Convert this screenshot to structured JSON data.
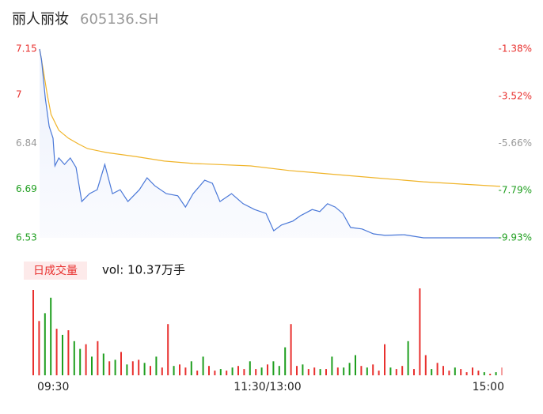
{
  "header": {
    "title": "丽人丽妆",
    "code": "605136.SH"
  },
  "chart_data": [
    {
      "type": "line",
      "xlim": [
        0,
        240
      ],
      "ylim": [
        6.53,
        7.15
      ],
      "yticks": [
        7.15,
        7.0,
        6.84,
        6.69,
        6.53
      ],
      "ytick_colors": [
        "#e8302e",
        "#e8302e",
        "#999999",
        "#1e9e1e",
        "#1e9e1e"
      ],
      "y2lim": [
        -9.93,
        -1.38
      ],
      "y2ticks": [
        {
          "value": -1.38,
          "label": "-1.38%"
        },
        {
          "value": -3.52,
          "label": "-3.52%"
        },
        {
          "value": -5.66,
          "label": "-5.66%"
        },
        {
          "value": -7.79,
          "label": "-7.79%"
        },
        {
          "value": -9.93,
          "label": "-9.93%"
        }
      ],
      "series": [
        {
          "color": "#4a78d8",
          "x": [
            0,
            1,
            3,
            5,
            7,
            8,
            10,
            13,
            16,
            19,
            22,
            26,
            30,
            34,
            38,
            42,
            46,
            52,
            56,
            60,
            66,
            72,
            76,
            80,
            86,
            90,
            94,
            100,
            106,
            112,
            118,
            122,
            126,
            132,
            136,
            142,
            146,
            150,
            154,
            158,
            162,
            168,
            174,
            180,
            190,
            200,
            240
          ],
          "values": [
            7.15,
            7.116,
            6.987,
            6.896,
            6.857,
            6.766,
            6.792,
            6.771,
            6.792,
            6.761,
            6.649,
            6.675,
            6.688,
            6.771,
            6.675,
            6.688,
            6.649,
            6.688,
            6.727,
            6.701,
            6.675,
            6.668,
            6.631,
            6.675,
            6.719,
            6.709,
            6.649,
            6.675,
            6.642,
            6.623,
            6.61,
            6.553,
            6.572,
            6.585,
            6.603,
            6.623,
            6.616,
            6.642,
            6.631,
            6.61,
            6.564,
            6.559,
            6.543,
            6.538,
            6.54,
            6.53,
            6.53
          ]
        },
        {
          "color": "#f0b429",
          "x": [
            0,
            2,
            4,
            6,
            10,
            15,
            20,
            25,
            35,
            50,
            65,
            80,
            110,
            130,
            150,
            175,
            200,
            240
          ],
          "values": [
            7.15,
            7.077,
            7.0,
            6.935,
            6.883,
            6.857,
            6.839,
            6.823,
            6.81,
            6.797,
            6.782,
            6.774,
            6.766,
            6.751,
            6.74,
            6.727,
            6.714,
            6.699
          ]
        }
      ]
    },
    {
      "type": "bar",
      "label": "日成交量",
      "total": "vol: 10.37万手",
      "xlim": [
        0,
        240
      ],
      "xticks": [
        {
          "value": 0,
          "label": "09:30"
        },
        {
          "value": 120,
          "label": "11:30/13:00"
        },
        {
          "value": 240,
          "label": "15:00"
        }
      ],
      "x": [
        0,
        3,
        6,
        9,
        12,
        15,
        18,
        21,
        24,
        27,
        30,
        33,
        36,
        39,
        42,
        45,
        48,
        51,
        54,
        57,
        60,
        63,
        66,
        69,
        72,
        75,
        78,
        81,
        84,
        87,
        90,
        93,
        96,
        99,
        102,
        105,
        108,
        111,
        114,
        117,
        120,
        123,
        126,
        129,
        132,
        135,
        138,
        141,
        144,
        147,
        150,
        153,
        156,
        159,
        162,
        165,
        168,
        171,
        174,
        177,
        180,
        183,
        186,
        189,
        192,
        195,
        198,
        201,
        204,
        207,
        210,
        213,
        216,
        219,
        222,
        225,
        228,
        231,
        234,
        237,
        240
      ],
      "values": [
        2750,
        1750,
        2000,
        2500,
        1500,
        1300,
        1450,
        1100,
        850,
        1000,
        600,
        1100,
        700,
        450,
        500,
        750,
        350,
        450,
        500,
        400,
        300,
        600,
        250,
        1650,
        300,
        350,
        250,
        450,
        150,
        600,
        300,
        150,
        200,
        150,
        250,
        300,
        200,
        450,
        200,
        250,
        350,
        450,
        300,
        900,
        1650,
        300,
        350,
        200,
        250,
        200,
        200,
        600,
        250,
        250,
        400,
        650,
        300,
        250,
        350,
        150,
        1000,
        250,
        200,
        300,
        1100,
        200,
        2800,
        650,
        200,
        400,
        300,
        150,
        250,
        200,
        100,
        250,
        150,
        100,
        50,
        100,
        250
      ],
      "colors": [
        "#e8302e",
        "#e8302e",
        "#1e9e1e",
        "#1e9e1e",
        "#e8302e",
        "#1e9e1e",
        "#e8302e",
        "#1e9e1e",
        "#1e9e1e",
        "#e8302e",
        "#1e9e1e",
        "#e8302e",
        "#1e9e1e",
        "#e8302e",
        "#1e9e1e",
        "#e8302e",
        "#1e9e1e",
        "#e8302e",
        "#e8302e",
        "#1e9e1e",
        "#e8302e",
        "#1e9e1e",
        "#e8302e",
        "#e8302e",
        "#1e9e1e",
        "#e8302e",
        "#e8302e",
        "#1e9e1e",
        "#e8302e",
        "#1e9e1e",
        "#e8302e",
        "#e8302e",
        "#1e9e1e",
        "#e8302e",
        "#1e9e1e",
        "#e8302e",
        "#e8302e",
        "#1e9e1e",
        "#e8302e",
        "#1e9e1e",
        "#e8302e",
        "#1e9e1e",
        "#1e9e1e",
        "#1e9e1e",
        "#e8302e",
        "#e8302e",
        "#1e9e1e",
        "#e8302e",
        "#e8302e",
        "#1e9e1e",
        "#e8302e",
        "#1e9e1e",
        "#e8302e",
        "#1e9e1e",
        "#1e9e1e",
        "#1e9e1e",
        "#e8302e",
        "#1e9e1e",
        "#e8302e",
        "#e8302e",
        "#e8302e",
        "#1e9e1e",
        "#e8302e",
        "#e8302e",
        "#1e9e1e",
        "#e8302e",
        "#e8302e",
        "#e8302e",
        "#1e9e1e",
        "#e8302e",
        "#e8302e",
        "#e8302e",
        "#1e9e1e",
        "#e8302e",
        "#e8302e",
        "#e8302e",
        "#e8302e",
        "#1e9e1e",
        "#e8302e",
        "#1e9e1e",
        "#f5a0a0"
      ]
    }
  ]
}
